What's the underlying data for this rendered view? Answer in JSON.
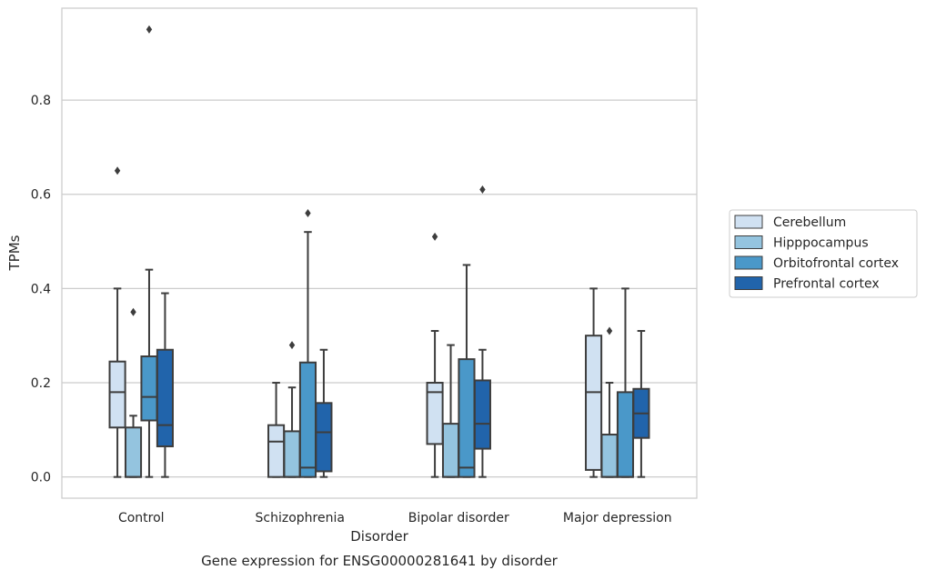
{
  "chart_data": {
    "type": "box",
    "title": "",
    "caption": "Gene expression for ENSG00000281641 by disorder",
    "xlabel": "Disorder",
    "ylabel": "TPMs",
    "ylim": [
      -0.045,
      0.995
    ],
    "yticks": [
      "0.0",
      "0.2",
      "0.4",
      "0.6",
      "0.8"
    ],
    "grid": "horizontal",
    "legend_position": "right",
    "categories": [
      "Control",
      "Schizophrenia",
      "Bipolar disorder",
      "Major depression"
    ],
    "series": [
      {
        "name": "Cerebellum",
        "color": "#d0e1f2",
        "boxes": [
          {
            "whislo": 0.0,
            "q1": 0.105,
            "med": 0.18,
            "q3": 0.245,
            "whishi": 0.4,
            "fliers": [
              0.65
            ]
          },
          {
            "whislo": 0.0,
            "q1": 0.0,
            "med": 0.075,
            "q3": 0.11,
            "whishi": 0.2,
            "fliers": []
          },
          {
            "whislo": 0.0,
            "q1": 0.07,
            "med": 0.18,
            "q3": 0.2,
            "whishi": 0.31,
            "fliers": [
              0.51
            ]
          },
          {
            "whislo": 0.0,
            "q1": 0.015,
            "med": 0.18,
            "q3": 0.3,
            "whishi": 0.4,
            "fliers": []
          }
        ]
      },
      {
        "name": "Hipppocampus",
        "color": "#94c4df",
        "boxes": [
          {
            "whislo": 0.0,
            "q1": 0.0,
            "med": 0.0,
            "q3": 0.105,
            "whishi": 0.13,
            "fliers": [
              0.35
            ]
          },
          {
            "whislo": 0.0,
            "q1": 0.0,
            "med": 0.0,
            "q3": 0.097,
            "whishi": 0.19,
            "fliers": [
              0.28
            ]
          },
          {
            "whislo": 0.0,
            "q1": 0.0,
            "med": 0.0,
            "q3": 0.113,
            "whishi": 0.28,
            "fliers": []
          },
          {
            "whislo": 0.0,
            "q1": 0.0,
            "med": 0.0,
            "q3": 0.09,
            "whishi": 0.2,
            "fliers": [
              0.31
            ]
          }
        ]
      },
      {
        "name": "Orbitofrontal cortex",
        "color": "#4a98c9",
        "boxes": [
          {
            "whislo": 0.0,
            "q1": 0.12,
            "med": 0.17,
            "q3": 0.256,
            "whishi": 0.44,
            "fliers": [
              0.95
            ]
          },
          {
            "whislo": 0.0,
            "q1": 0.0,
            "med": 0.02,
            "q3": 0.243,
            "whishi": 0.52,
            "fliers": [
              0.56
            ]
          },
          {
            "whislo": 0.0,
            "q1": 0.0,
            "med": 0.02,
            "q3": 0.25,
            "whishi": 0.45,
            "fliers": []
          },
          {
            "whislo": 0.0,
            "q1": 0.0,
            "med": 0.0,
            "q3": 0.18,
            "whishi": 0.4,
            "fliers": []
          }
        ]
      },
      {
        "name": "Prefrontal cortex",
        "color": "#2164ab",
        "boxes": [
          {
            "whislo": 0.0,
            "q1": 0.065,
            "med": 0.11,
            "q3": 0.27,
            "whishi": 0.39,
            "fliers": []
          },
          {
            "whislo": 0.0,
            "q1": 0.012,
            "med": 0.095,
            "q3": 0.157,
            "whishi": 0.27,
            "fliers": []
          },
          {
            "whislo": 0.0,
            "q1": 0.06,
            "med": 0.113,
            "q3": 0.205,
            "whishi": 0.27,
            "fliers": [
              0.61
            ]
          },
          {
            "whislo": 0.0,
            "q1": 0.083,
            "med": 0.135,
            "q3": 0.187,
            "whishi": 0.31,
            "fliers": []
          }
        ]
      }
    ]
  }
}
